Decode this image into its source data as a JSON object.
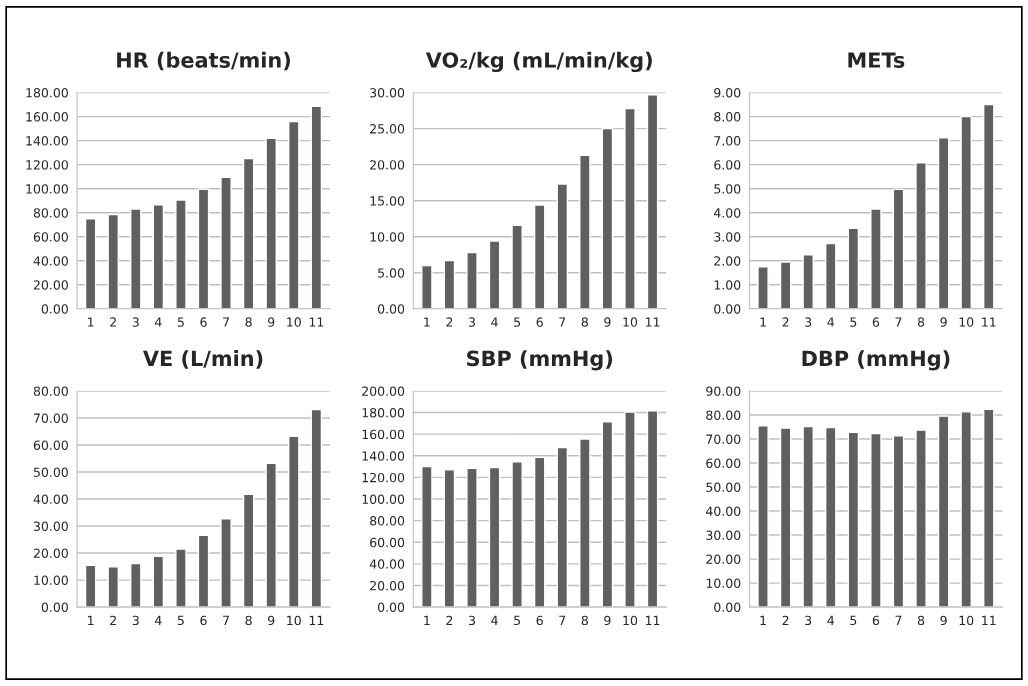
{
  "chart_data": [
    {
      "type": "bar",
      "title": "HR (beats/min)",
      "categories": [
        "1",
        "2",
        "3",
        "4",
        "5",
        "6",
        "7",
        "8",
        "9",
        "10",
        "11"
      ],
      "values": [
        75,
        78.5,
        83,
        86.5,
        90.5,
        99.5,
        109.5,
        125,
        142,
        156,
        168.5
      ],
      "color": "#606060",
      "ylim": [
        0,
        180
      ],
      "yticks": [
        {
          "value": 0,
          "label": "0.00"
        },
        {
          "value": 20,
          "label": "20.00"
        },
        {
          "value": 40,
          "label": "40.00"
        },
        {
          "value": 60,
          "label": "60.00"
        },
        {
          "value": 80,
          "label": "80.00"
        },
        {
          "value": 100,
          "label": "100.00"
        },
        {
          "value": 120,
          "label": "120.00"
        },
        {
          "value": 140,
          "label": "140.00"
        },
        {
          "value": 160,
          "label": "160.00"
        },
        {
          "value": 180,
          "label": "180.00"
        }
      ],
      "grid": "y",
      "legend": false
    },
    {
      "type": "bar",
      "title": "VO₂/kg (mL/min/kg)",
      "categories": [
        "1",
        "2",
        "3",
        "4",
        "5",
        "6",
        "7",
        "8",
        "9",
        "10",
        "11"
      ],
      "values": [
        6.0,
        6.7,
        7.8,
        9.4,
        11.6,
        14.4,
        17.3,
        21.3,
        25.0,
        27.8,
        29.7
      ],
      "color": "#606060",
      "ylim": [
        0,
        30
      ],
      "yticks": [
        {
          "value": 0,
          "label": "0.00"
        },
        {
          "value": 5,
          "label": "5.00"
        },
        {
          "value": 10,
          "label": "10.00"
        },
        {
          "value": 15,
          "label": "15.00"
        },
        {
          "value": 20,
          "label": "20.00"
        },
        {
          "value": 25,
          "label": "25.00"
        },
        {
          "value": 30,
          "label": "30.00"
        }
      ],
      "grid": "y",
      "legend": false
    },
    {
      "type": "bar",
      "title": "METs",
      "categories": [
        "1",
        "2",
        "3",
        "4",
        "5",
        "6",
        "7",
        "8",
        "9",
        "10",
        "11"
      ],
      "values": [
        1.75,
        1.95,
        2.25,
        2.72,
        3.35,
        4.15,
        4.97,
        6.08,
        7.12,
        8.0,
        8.5
      ],
      "color": "#606060",
      "ylim": [
        0,
        9
      ],
      "yticks": [
        {
          "value": 0,
          "label": "0.00"
        },
        {
          "value": 1,
          "label": "1.00"
        },
        {
          "value": 2,
          "label": "2.00"
        },
        {
          "value": 3,
          "label": "3.00"
        },
        {
          "value": 4,
          "label": "4.00"
        },
        {
          "value": 5,
          "label": "5.00"
        },
        {
          "value": 6,
          "label": "6.00"
        },
        {
          "value": 7,
          "label": "7.00"
        },
        {
          "value": 8,
          "label": "8.00"
        },
        {
          "value": 9,
          "label": "9.00"
        }
      ],
      "grid": "y",
      "legend": false
    },
    {
      "type": "bar",
      "title": "VE (L/min)",
      "categories": [
        "1",
        "2",
        "3",
        "4",
        "5",
        "6",
        "7",
        "8",
        "9",
        "10",
        "11"
      ],
      "values": [
        15.5,
        14.9,
        16.1,
        18.8,
        21.5,
        26.6,
        32.7,
        41.7,
        53.2,
        63.2,
        73.1
      ],
      "color": "#606060",
      "ylim": [
        0,
        80
      ],
      "yticks": [
        {
          "value": 0,
          "label": "0.00"
        },
        {
          "value": 10,
          "label": "10.00"
        },
        {
          "value": 20,
          "label": "20.00"
        },
        {
          "value": 30,
          "label": "30.00"
        },
        {
          "value": 40,
          "label": "40.00"
        },
        {
          "value": 50,
          "label": "50.00"
        },
        {
          "value": 60,
          "label": "60.00"
        },
        {
          "value": 70,
          "label": "70.00"
        },
        {
          "value": 80,
          "label": "80.00"
        }
      ],
      "grid": "y",
      "legend": false
    },
    {
      "type": "bar",
      "title": "SBP (mmHg)",
      "categories": [
        "1",
        "2",
        "3",
        "4",
        "5",
        "6",
        "7",
        "8",
        "9",
        "10",
        "11"
      ],
      "values": [
        130,
        127,
        128.5,
        129,
        134.5,
        138.5,
        147.5,
        155.5,
        171.5,
        180.5,
        181.5
      ],
      "color": "#606060",
      "ylim": [
        0,
        200
      ],
      "yticks": [
        {
          "value": 0,
          "label": "0.00"
        },
        {
          "value": 20,
          "label": "20.00"
        },
        {
          "value": 40,
          "label": "40.00"
        },
        {
          "value": 60,
          "label": "60.00"
        },
        {
          "value": 80,
          "label": "80.00"
        },
        {
          "value": 100,
          "label": "100.00"
        },
        {
          "value": 120,
          "label": "120.00"
        },
        {
          "value": 140,
          "label": "140.00"
        },
        {
          "value": 160,
          "label": "160.00"
        },
        {
          "value": 180,
          "label": "180.00"
        },
        {
          "value": 200,
          "label": "200.00"
        }
      ],
      "grid": "y",
      "legend": false
    },
    {
      "type": "bar",
      "title": "DBP (mmHg)",
      "categories": [
        "1",
        "2",
        "3",
        "4",
        "5",
        "6",
        "7",
        "8",
        "9",
        "10",
        "11"
      ],
      "values": [
        75.5,
        74.5,
        75.2,
        74.8,
        72.8,
        72.3,
        71.3,
        73.7,
        79.5,
        81.3,
        82.3
      ],
      "color": "#606060",
      "ylim": [
        0,
        90
      ],
      "yticks": [
        {
          "value": 0,
          "label": "0.00"
        },
        {
          "value": 10,
          "label": "10.00"
        },
        {
          "value": 20,
          "label": "20.00"
        },
        {
          "value": 30,
          "label": "30.00"
        },
        {
          "value": 40,
          "label": "40.00"
        },
        {
          "value": 50,
          "label": "50.00"
        },
        {
          "value": 60,
          "label": "60.00"
        },
        {
          "value": 70,
          "label": "70.00"
        },
        {
          "value": 80,
          "label": "80.00"
        },
        {
          "value": 90,
          "label": "90.00"
        }
      ],
      "grid": "y",
      "legend": false
    }
  ]
}
